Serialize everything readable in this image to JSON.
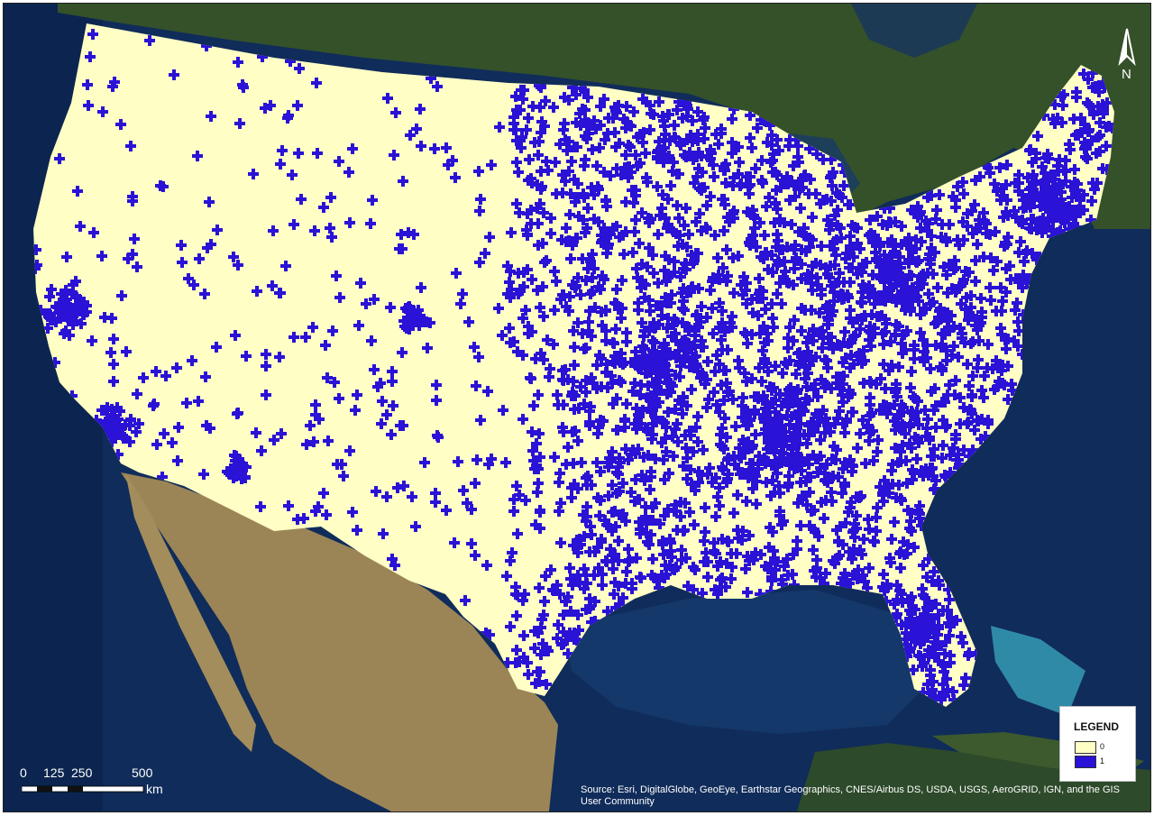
{
  "map": {
    "basemap": "satellite imagery",
    "colors": {
      "class_0": "#ffffc5",
      "class_1": "#2a12d6",
      "ocean": "#102c5a",
      "land": "#3d5a2a",
      "desert": "#a08a58"
    }
  },
  "north_arrow": {
    "label": "N"
  },
  "legend": {
    "title": "LEGEND",
    "items": [
      {
        "label": "0",
        "color": "#ffffc5"
      },
      {
        "label": "1",
        "color": "#2a12d6"
      }
    ]
  },
  "scale_bar": {
    "labels": [
      "0",
      "125",
      "250",
      "500"
    ],
    "unit": "km"
  },
  "attribution": "Source: Esri, DigitalGlobe, GeoEye, Earthstar Geographics, CNES/Airbus DS, USDA, USGS, AeroGRID, IGN, and the GIS User Community"
}
